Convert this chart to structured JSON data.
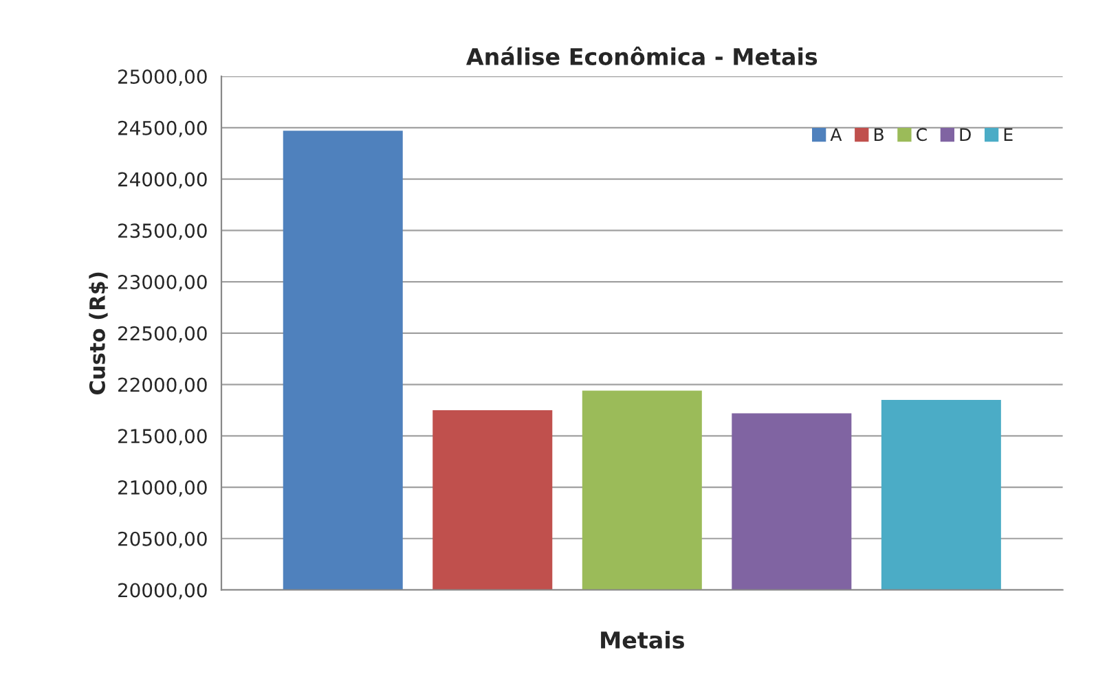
{
  "chart_data": {
    "type": "bar",
    "title": "Análise Econômica - Metais",
    "xlabel": "Metais",
    "ylabel": "Custo (R$)",
    "categories": [
      null
    ],
    "series": [
      {
        "name": "A",
        "color": "#4f81bd",
        "values": [
          24470
        ]
      },
      {
        "name": "B",
        "color": "#c0504d",
        "values": [
          21750
        ]
      },
      {
        "name": "C",
        "color": "#9bbb59",
        "values": [
          21940
        ]
      },
      {
        "name": "D",
        "color": "#8064a2",
        "values": [
          21720
        ]
      },
      {
        "name": "E",
        "color": "#4bacc6",
        "values": [
          21850
        ]
      }
    ],
    "ylim": [
      20000,
      25000
    ],
    "yticks": [
      {
        "value": 20000,
        "label": "20000,00"
      },
      {
        "value": 20500,
        "label": "20500,00"
      },
      {
        "value": 21000,
        "label": "21000,00"
      },
      {
        "value": 21500,
        "label": "21500,00"
      },
      {
        "value": 22000,
        "label": "22000,00"
      },
      {
        "value": 22500,
        "label": "22500,00"
      },
      {
        "value": 23000,
        "label": "23000,00"
      },
      {
        "value": 23500,
        "label": "23500,00"
      },
      {
        "value": 24000,
        "label": "24000,00"
      },
      {
        "value": 24500,
        "label": "24500,00"
      },
      {
        "value": 25000,
        "label": "25000,00"
      }
    ],
    "grid": "y",
    "legend": "top right"
  }
}
